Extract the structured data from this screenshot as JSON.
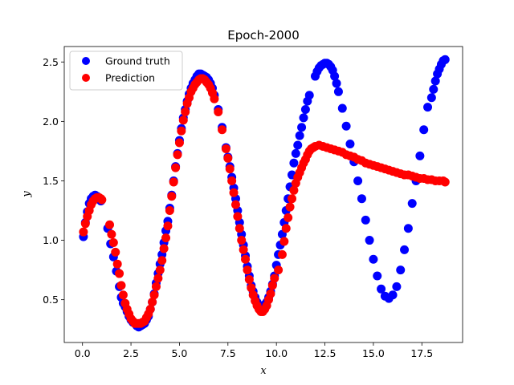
{
  "chart_data": {
    "type": "scatter",
    "title": "Epoch-2000",
    "xlabel": "x",
    "ylabel": "y",
    "xlim": [
      -0.94,
      19.6
    ],
    "ylim": [
      0.14,
      2.63
    ],
    "xticks": [
      0.0,
      2.5,
      5.0,
      7.5,
      10.0,
      12.5,
      15.0,
      17.5
    ],
    "xtick_labels": [
      "0.0",
      "2.5",
      "5.0",
      "7.5",
      "10.0",
      "12.5",
      "15.0",
      "17.5"
    ],
    "yticks": [
      0.5,
      1.0,
      1.5,
      2.0,
      2.5
    ],
    "ytick_labels": [
      "0.5",
      "1.0",
      "1.5",
      "2.0",
      "2.5"
    ],
    "grid": false,
    "legend_position": "top-left",
    "series": [
      {
        "name": "Ground truth",
        "color": "#0000ff",
        "x": [
          0.05,
          0.15,
          0.25,
          0.35,
          0.45,
          0.55,
          0.65,
          0.75,
          0.85,
          0.95,
          1.3,
          1.45,
          1.6,
          1.75,
          1.9,
          2.0,
          2.1,
          2.2,
          2.3,
          2.4,
          2.5,
          2.6,
          2.7,
          2.8,
          2.9,
          3.0,
          3.1,
          3.2,
          3.3,
          3.4,
          3.5,
          3.6,
          3.7,
          3.8,
          3.9,
          4.0,
          4.1,
          4.2,
          4.3,
          4.4,
          4.5,
          4.6,
          4.7,
          4.8,
          4.9,
          5.0,
          5.1,
          5.2,
          5.3,
          5.4,
          5.5,
          5.6,
          5.7,
          5.8,
          5.9,
          6.0,
          6.1,
          6.2,
          6.3,
          6.4,
          6.5,
          6.6,
          6.7,
          6.8,
          7.0,
          7.2,
          7.4,
          7.5,
          7.6,
          7.7,
          7.8,
          7.9,
          8.0,
          8.1,
          8.2,
          8.3,
          8.4,
          8.5,
          8.6,
          8.7,
          8.8,
          8.9,
          9.0,
          9.1,
          9.2,
          9.3,
          9.4,
          9.5,
          9.6,
          9.7,
          9.8,
          9.9,
          10.0,
          10.1,
          10.2,
          10.3,
          10.4,
          10.5,
          10.6,
          10.7,
          10.8,
          10.9,
          11.0,
          11.1,
          11.2,
          11.3,
          11.4,
          11.5,
          11.6,
          11.7,
          12.0,
          12.1,
          12.2,
          12.3,
          12.4,
          12.5,
          12.6,
          12.7,
          12.8,
          12.9,
          13.0,
          13.1,
          13.2,
          13.4,
          13.6,
          13.8,
          14.0,
          14.2,
          14.4,
          14.6,
          14.8,
          15.0,
          15.2,
          15.4,
          15.6,
          15.8,
          16.0,
          16.2,
          16.4,
          16.6,
          16.8,
          17.0,
          17.2,
          17.4,
          17.6,
          17.8,
          18.0,
          18.1,
          18.2,
          18.3,
          18.4,
          18.5,
          18.6,
          18.7
        ],
        "y": [
          1.03,
          1.15,
          1.24,
          1.31,
          1.35,
          1.37,
          1.38,
          1.37,
          1.35,
          1.33,
          1.1,
          0.97,
          0.86,
          0.74,
          0.61,
          0.52,
          0.47,
          0.44,
          0.4,
          0.36,
          0.33,
          0.31,
          0.3,
          0.28,
          0.27,
          0.28,
          0.29,
          0.3,
          0.33,
          0.36,
          0.42,
          0.48,
          0.55,
          0.64,
          0.72,
          0.8,
          0.88,
          0.98,
          1.08,
          1.16,
          1.27,
          1.38,
          1.5,
          1.62,
          1.73,
          1.84,
          1.94,
          2.03,
          2.1,
          2.17,
          2.23,
          2.28,
          2.32,
          2.35,
          2.38,
          2.4,
          2.4,
          2.39,
          2.38,
          2.37,
          2.35,
          2.32,
          2.28,
          2.22,
          2.1,
          1.95,
          1.78,
          1.7,
          1.62,
          1.53,
          1.44,
          1.35,
          1.25,
          1.15,
          1.05,
          0.96,
          0.87,
          0.78,
          0.7,
          0.62,
          0.57,
          0.52,
          0.48,
          0.45,
          0.44,
          0.44,
          0.46,
          0.48,
          0.52,
          0.57,
          0.63,
          0.7,
          0.79,
          0.88,
          0.96,
          1.05,
          1.15,
          1.25,
          1.35,
          1.45,
          1.55,
          1.65,
          1.73,
          1.8,
          1.88,
          1.95,
          2.03,
          2.1,
          2.17,
          2.22,
          2.38,
          2.42,
          2.45,
          2.47,
          2.48,
          2.49,
          2.49,
          2.48,
          2.46,
          2.43,
          2.38,
          2.32,
          2.25,
          2.11,
          1.96,
          1.81,
          1.66,
          1.5,
          1.35,
          1.17,
          1.0,
          0.84,
          0.7,
          0.59,
          0.53,
          0.51,
          0.54,
          0.61,
          0.75,
          0.92,
          1.1,
          1.31,
          1.5,
          1.71,
          1.93,
          2.12,
          2.2,
          2.27,
          2.34,
          2.4,
          2.44,
          2.48,
          2.51,
          2.52
        ]
      },
      {
        "name": "Prediction",
        "color": "#ff0000",
        "x": [
          0.05,
          0.15,
          0.25,
          0.35,
          0.45,
          0.55,
          0.65,
          0.75,
          0.85,
          0.95,
          1.0,
          1.4,
          1.5,
          1.6,
          1.7,
          1.8,
          1.9,
          2.0,
          2.1,
          2.2,
          2.3,
          2.4,
          2.5,
          2.6,
          2.7,
          2.8,
          2.9,
          3.0,
          3.1,
          3.2,
          3.3,
          3.4,
          3.5,
          3.6,
          3.7,
          3.8,
          3.9,
          4.0,
          4.1,
          4.2,
          4.3,
          4.4,
          4.5,
          4.6,
          4.7,
          4.8,
          4.9,
          5.0,
          5.1,
          5.2,
          5.3,
          5.4,
          5.5,
          5.6,
          5.7,
          5.8,
          5.9,
          6.0,
          6.1,
          6.2,
          6.3,
          6.4,
          6.5,
          6.6,
          6.7,
          6.8,
          7.0,
          7.2,
          7.4,
          7.5,
          7.6,
          7.7,
          7.8,
          7.9,
          8.0,
          8.1,
          8.2,
          8.3,
          8.4,
          8.5,
          8.6,
          8.7,
          8.8,
          8.9,
          9.0,
          9.1,
          9.2,
          9.3,
          9.4,
          9.5,
          9.6,
          9.7,
          9.8,
          9.9,
          10.1,
          10.3,
          10.4,
          10.5,
          10.6,
          10.7,
          10.8,
          10.9,
          11.0,
          11.1,
          11.2,
          11.3,
          11.4,
          11.5,
          11.6,
          11.7,
          11.8,
          11.9,
          12.0,
          12.2,
          12.4,
          12.6,
          12.8,
          13.0,
          13.2,
          13.4,
          13.6,
          13.8,
          14.0,
          14.2,
          14.4,
          14.6,
          14.8,
          15.0,
          15.2,
          15.4,
          15.6,
          15.8,
          16.0,
          16.2,
          16.4,
          16.6,
          16.8,
          17.0,
          17.2,
          17.4,
          17.6,
          17.8,
          18.0,
          18.2,
          18.4,
          18.6,
          18.7
        ],
        "y": [
          1.07,
          1.14,
          1.2,
          1.25,
          1.3,
          1.33,
          1.35,
          1.36,
          1.36,
          1.35,
          1.34,
          1.13,
          1.05,
          0.98,
          0.9,
          0.8,
          0.72,
          0.62,
          0.54,
          0.47,
          0.42,
          0.38,
          0.34,
          0.32,
          0.3,
          0.3,
          0.3,
          0.3,
          0.31,
          0.32,
          0.35,
          0.38,
          0.42,
          0.48,
          0.54,
          0.61,
          0.68,
          0.75,
          0.83,
          0.93,
          1.02,
          1.12,
          1.25,
          1.37,
          1.49,
          1.61,
          1.72,
          1.82,
          1.92,
          2.01,
          2.08,
          2.15,
          2.2,
          2.25,
          2.28,
          2.31,
          2.33,
          2.35,
          2.36,
          2.36,
          2.35,
          2.33,
          2.31,
          2.28,
          2.24,
          2.19,
          2.08,
          1.93,
          1.77,
          1.69,
          1.6,
          1.5,
          1.4,
          1.3,
          1.2,
          1.1,
          1.0,
          0.92,
          0.84,
          0.75,
          0.67,
          0.6,
          0.54,
          0.49,
          0.45,
          0.42,
          0.4,
          0.4,
          0.42,
          0.45,
          0.5,
          0.55,
          0.62,
          0.68,
          0.75,
          0.88,
          0.99,
          1.1,
          1.19,
          1.28,
          1.35,
          1.42,
          1.48,
          1.53,
          1.57,
          1.61,
          1.65,
          1.68,
          1.72,
          1.75,
          1.77,
          1.78,
          1.79,
          1.8,
          1.79,
          1.78,
          1.77,
          1.76,
          1.75,
          1.74,
          1.72,
          1.71,
          1.7,
          1.68,
          1.67,
          1.65,
          1.64,
          1.63,
          1.62,
          1.61,
          1.6,
          1.59,
          1.58,
          1.57,
          1.56,
          1.55,
          1.55,
          1.54,
          1.53,
          1.52,
          1.52,
          1.51,
          1.51,
          1.5,
          1.5,
          1.5,
          1.49
        ]
      }
    ]
  }
}
